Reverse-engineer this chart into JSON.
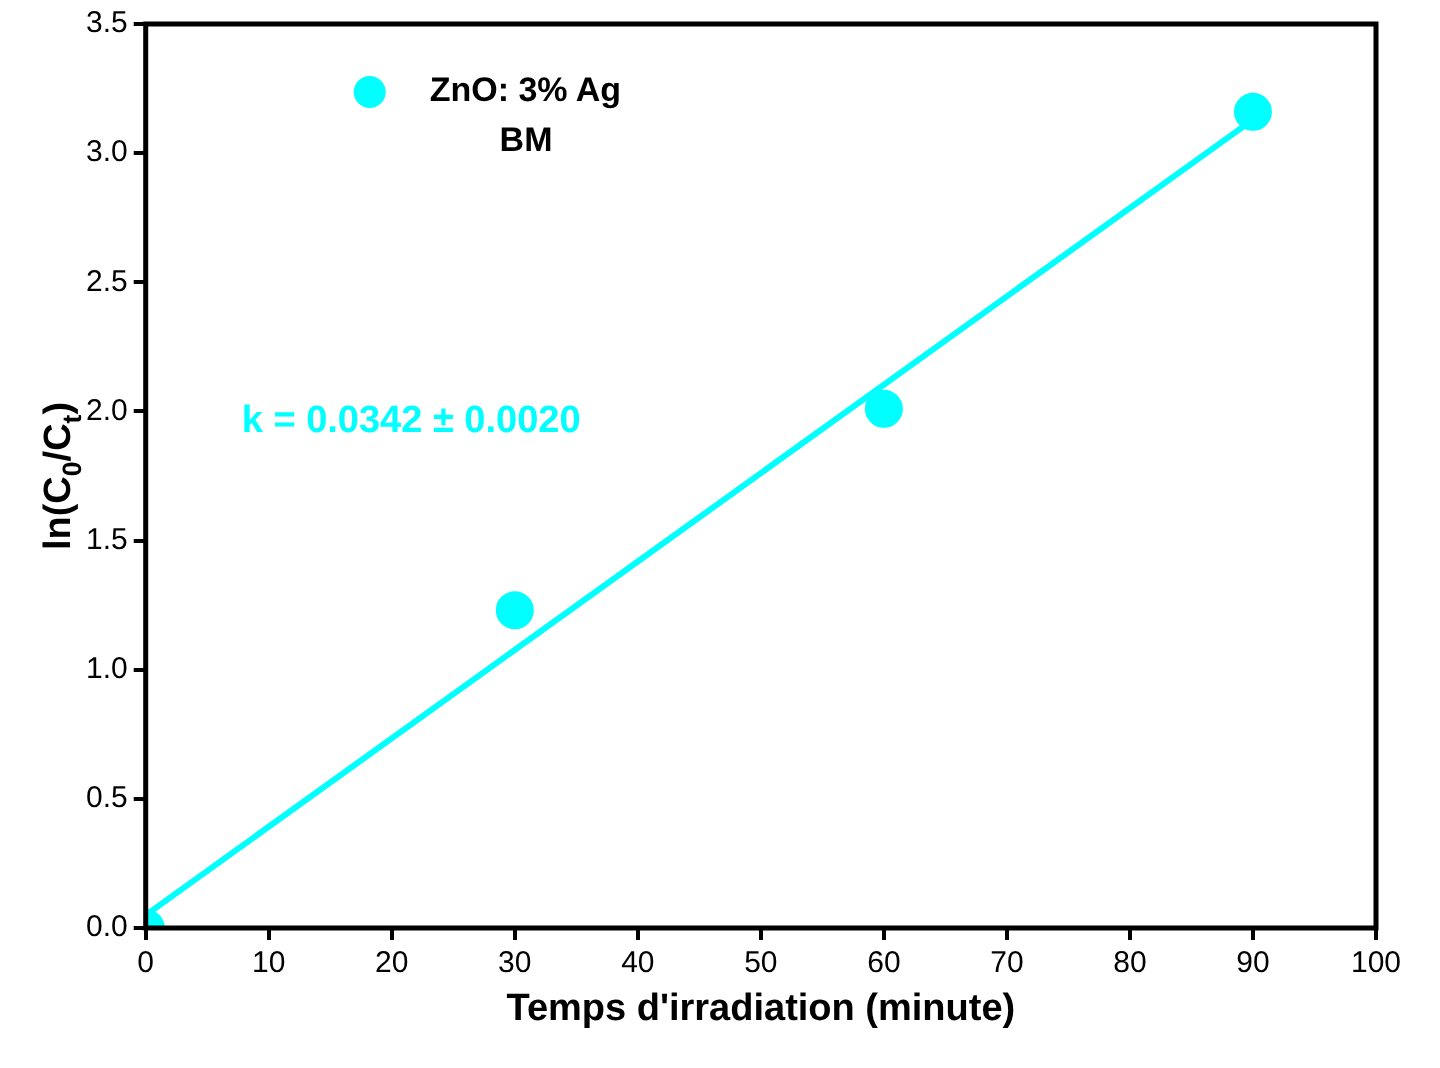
{
  "chart_data": {
    "type": "scatter",
    "xlabel": "Temps d'irradiation (minute)",
    "ylabel": "ln(C$_{0}$/C$_{t}$)",
    "series": [
      {
        "name": "ZnO: 3% Ag BM",
        "type": "scatter",
        "color": "#00ffff",
        "x": [
          0,
          30,
          60,
          90
        ],
        "values": [
          0.0,
          1.23,
          2.01,
          3.16
        ],
        "marker": "circle"
      },
      {
        "type": "line",
        "color": "#00ffff",
        "x": [
          0,
          90
        ],
        "values": [
          0.05,
          3.13
        ],
        "marker": "none",
        "line_style": "solid"
      }
    ],
    "annotations": [
      "k = 0.0342 ± 0.0020"
    ],
    "xlim": [
      0,
      100
    ],
    "xticks": [
      0,
      10,
      20,
      30,
      40,
      50,
      60,
      70,
      80,
      90,
      100
    ],
    "ylim": [
      0,
      3.5
    ],
    "yticks": [
      {
        "value": 0,
        "label": "0.0"
      },
      0.5,
      {
        "value": 1,
        "label": "1.0"
      },
      1.5,
      {
        "value": 2,
        "label": "2.0"
      },
      2.5,
      {
        "value": 3,
        "label": "3.0"
      },
      3.5
    ],
    "legend": "top left",
    "grid": false
  }
}
